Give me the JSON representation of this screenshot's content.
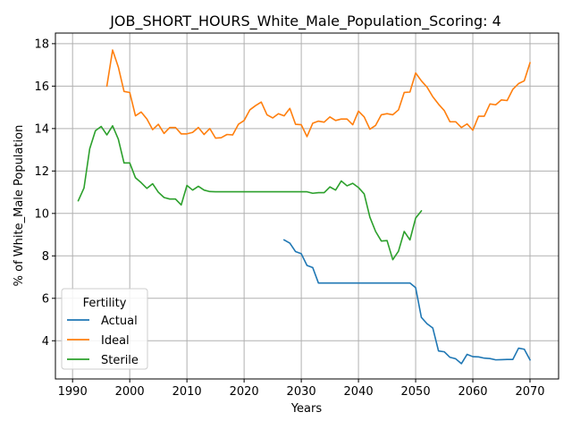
{
  "chart_data": {
    "type": "line",
    "title": "JOB_SHORT_HOURS_White_Male_Population_Scoring: 4",
    "xlabel": "Years",
    "ylabel": "% of White_Male Population",
    "xlim": [
      1987,
      2075
    ],
    "ylim": [
      2.2,
      18.5
    ],
    "xticks": [
      1990,
      2000,
      2010,
      2020,
      2030,
      2040,
      2050,
      2060,
      2070
    ],
    "yticks": [
      4,
      6,
      8,
      10,
      12,
      14,
      16,
      18
    ],
    "grid": true,
    "legend": {
      "title": "Fertility",
      "placement": "lower-left"
    },
    "series": [
      {
        "name": "Actual",
        "color": "#1f77b4",
        "x": [
          2027,
          2028,
          2029,
          2030,
          2031,
          2032,
          2033,
          2034,
          2035,
          2036,
          2037,
          2038,
          2039,
          2040,
          2041,
          2042,
          2043,
          2044,
          2045,
          2046,
          2047,
          2048,
          2049,
          2050,
          2051,
          2052,
          2053,
          2054,
          2055,
          2056,
          2057,
          2058,
          2059,
          2060,
          2061,
          2062,
          2063,
          2064,
          2065,
          2066,
          2067,
          2068,
          2069,
          2070
        ],
        "values": [
          8.75,
          8.6,
          8.2,
          8.1,
          7.55,
          7.45,
          6.72,
          6.72,
          6.72,
          6.72,
          6.72,
          6.72,
          6.72,
          6.72,
          6.72,
          6.72,
          6.72,
          6.72,
          6.72,
          6.72,
          6.72,
          6.72,
          6.72,
          6.5,
          5.1,
          4.8,
          4.6,
          3.52,
          3.48,
          3.22,
          3.15,
          2.92,
          3.36,
          3.25,
          3.24,
          3.18,
          3.16,
          3.1,
          3.11,
          3.12,
          3.12,
          3.65,
          3.6,
          3.1
        ]
      },
      {
        "name": "Ideal",
        "color": "#ff7f0e",
        "x": [
          1996,
          1997,
          1998,
          1999,
          2000,
          2001,
          2002,
          2003,
          2004,
          2005,
          2006,
          2007,
          2008,
          2009,
          2010,
          2011,
          2012,
          2013,
          2014,
          2015,
          2016,
          2017,
          2018,
          2019,
          2020,
          2021,
          2022,
          2023,
          2024,
          2025,
          2026,
          2027,
          2028,
          2029,
          2030,
          2031,
          2032,
          2033,
          2034,
          2035,
          2036,
          2037,
          2038,
          2039,
          2040,
          2041,
          2042,
          2043,
          2044,
          2045,
          2046,
          2047,
          2048,
          2049,
          2050,
          2051,
          2052,
          2053,
          2054,
          2055,
          2056,
          2057,
          2058,
          2059,
          2060,
          2061,
          2062,
          2063,
          2064,
          2065,
          2066,
          2067,
          2068,
          2069,
          2070
        ],
        "values": [
          16.0,
          17.7,
          16.9,
          15.75,
          15.7,
          14.6,
          14.78,
          14.45,
          13.95,
          14.2,
          13.77,
          14.05,
          14.05,
          13.75,
          13.75,
          13.82,
          14.05,
          13.72,
          14.0,
          13.55,
          13.57,
          13.72,
          13.7,
          14.2,
          14.38,
          14.88,
          15.08,
          15.25,
          14.65,
          14.5,
          14.7,
          14.6,
          14.95,
          14.2,
          14.18,
          13.62,
          14.25,
          14.35,
          14.3,
          14.55,
          14.38,
          14.45,
          14.45,
          14.18,
          14.82,
          14.55,
          13.97,
          14.15,
          14.65,
          14.7,
          14.65,
          14.88,
          15.7,
          15.72,
          16.62,
          16.25,
          15.95,
          15.5,
          15.15,
          14.85,
          14.32,
          14.32,
          14.05,
          14.22,
          13.92,
          14.58,
          14.58,
          15.16,
          15.12,
          15.35,
          15.32,
          15.85,
          16.12,
          16.25,
          17.1
        ]
      },
      {
        "name": "Sterile",
        "color": "#2ca02c",
        "x": [
          1991,
          1992,
          1993,
          1994,
          1995,
          1996,
          1997,
          1998,
          1999,
          2000,
          2001,
          2002,
          2003,
          2004,
          2005,
          2006,
          2007,
          2008,
          2009,
          2010,
          2011,
          2012,
          2013,
          2014,
          2015,
          2016,
          2017,
          2018,
          2019,
          2020,
          2021,
          2022,
          2023,
          2024,
          2025,
          2026,
          2027,
          2028,
          2029,
          2030,
          2031,
          2032,
          2033,
          2034,
          2035,
          2036,
          2037,
          2038,
          2039,
          2040,
          2041,
          2042,
          2043,
          2044,
          2045,
          2046,
          2047,
          2048,
          2049,
          2050,
          2051
        ],
        "values": [
          10.6,
          11.2,
          13.05,
          13.9,
          14.1,
          13.7,
          14.13,
          13.5,
          12.38,
          12.38,
          11.68,
          11.45,
          11.18,
          11.4,
          11.0,
          10.75,
          10.68,
          10.68,
          10.4,
          11.32,
          11.1,
          11.28,
          11.1,
          11.03,
          11.02,
          11.02,
          11.02,
          11.02,
          11.02,
          11.02,
          11.02,
          11.02,
          11.02,
          11.02,
          11.02,
          11.02,
          11.02,
          11.02,
          11.02,
          11.02,
          11.02,
          10.95,
          10.98,
          10.98,
          11.25,
          11.1,
          11.53,
          11.3,
          11.42,
          11.22,
          10.92,
          9.82,
          9.15,
          8.7,
          8.72,
          7.82,
          8.22,
          9.15,
          8.75,
          9.78,
          10.12
        ]
      }
    ]
  }
}
